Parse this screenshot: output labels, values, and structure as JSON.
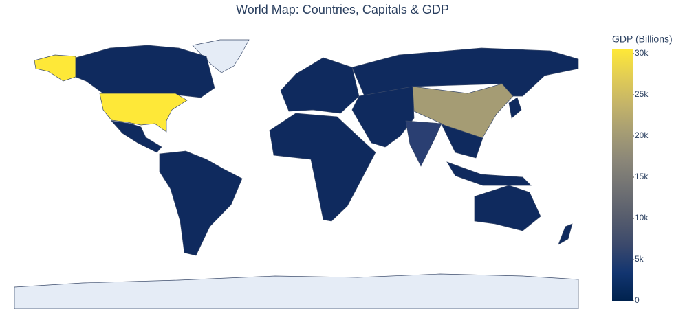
{
  "title": "World Map: Countries, Capitals & GDP",
  "colorbar": {
    "title": "GDP (Billions)",
    "range": [
      0,
      30500
    ],
    "ticks": [
      0,
      {
        "value": 5000,
        "label": "5k"
      },
      {
        "value": 10000,
        "label": "10k"
      },
      {
        "value": 15000,
        "label": "15k"
      },
      {
        "value": 20000,
        "label": "20k"
      },
      {
        "value": 25000,
        "label": "25k"
      },
      {
        "value": 30000,
        "label": "30k"
      }
    ],
    "colorscale": [
      "#00224e",
      "#123570",
      "#3b496c",
      "#575d6d",
      "#707173",
      "#8a8678",
      "#a59c74",
      "#c3b369",
      "#e1cc55",
      "#fee838"
    ]
  }
}
